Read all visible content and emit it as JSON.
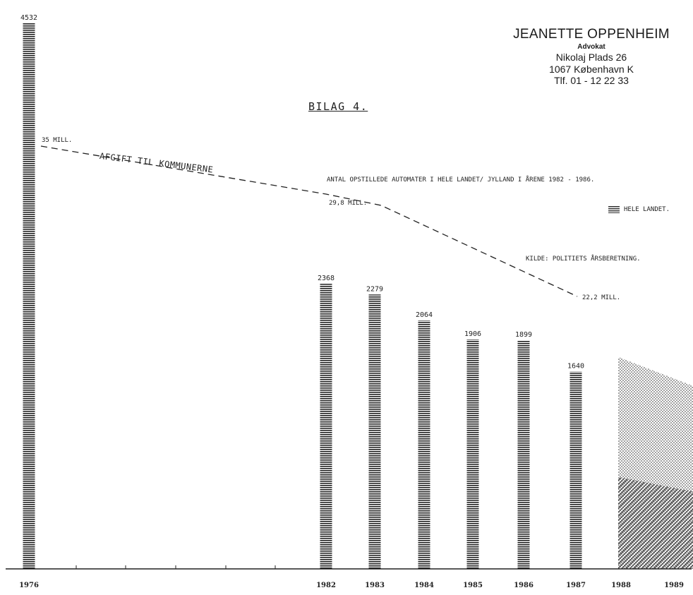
{
  "letterhead": {
    "name": "JEANETTE OPPENHEIM",
    "title": "Advokat",
    "address_line1": "Nikolaj Plads 26",
    "address_line2": "1067 København K",
    "phone": "Tlf. 01 - 12 22 33"
  },
  "document_label": "BILAG 4.",
  "annotations": {
    "main_title": "ANTAL OPSTILLEDE AUTOMATER I HELE LANDET/ JYLLAND I ÅRENE 1982 - 1986.",
    "legend_label": "HELE LANDET.",
    "source": "KILDE: POLITIETS ÅRSBERETNING.",
    "fee_line_label": "AFGIFT TIL KOMMUNERNE"
  },
  "colors": {
    "ink": "#222222",
    "paper": "#ffffff"
  },
  "chart_data": {
    "type": "bar",
    "title": "ANTAL OPSTILLEDE AUTOMATER I HELE LANDET/ JYLLAND I ÅRENE 1982 - 1986.",
    "xlabel": "",
    "ylabel": "",
    "ylim": [
      0,
      4532
    ],
    "grid": false,
    "legend_position": "right",
    "categories": [
      "1976",
      "1982",
      "1983",
      "1984",
      "1985",
      "1986",
      "1987",
      "1988",
      "1989"
    ],
    "series": [
      {
        "name": "HELE LANDET.",
        "values": [
          4532,
          2368,
          2279,
          2064,
          1906,
          1899,
          1640,
          null,
          null
        ],
        "value_labels": [
          "4532",
          "2368",
          "2279",
          "2064",
          "1906",
          "1899",
          "1640",
          "",
          ""
        ]
      }
    ],
    "projection": {
      "categories": [
        "1988",
        "1989"
      ],
      "values_top": [
        1760,
        1520
      ]
    },
    "fee_line": {
      "name": "AFGIFT TIL KOMMUNERNE",
      "points": [
        {
          "year": "1976",
          "value": 35,
          "label": "35 MILL."
        },
        {
          "year": "1983",
          "value": 29.8,
          "label": "29,8 MILL."
        },
        {
          "year": "1987",
          "value": 22.2,
          "label": "22,2 MILL."
        }
      ]
    }
  }
}
